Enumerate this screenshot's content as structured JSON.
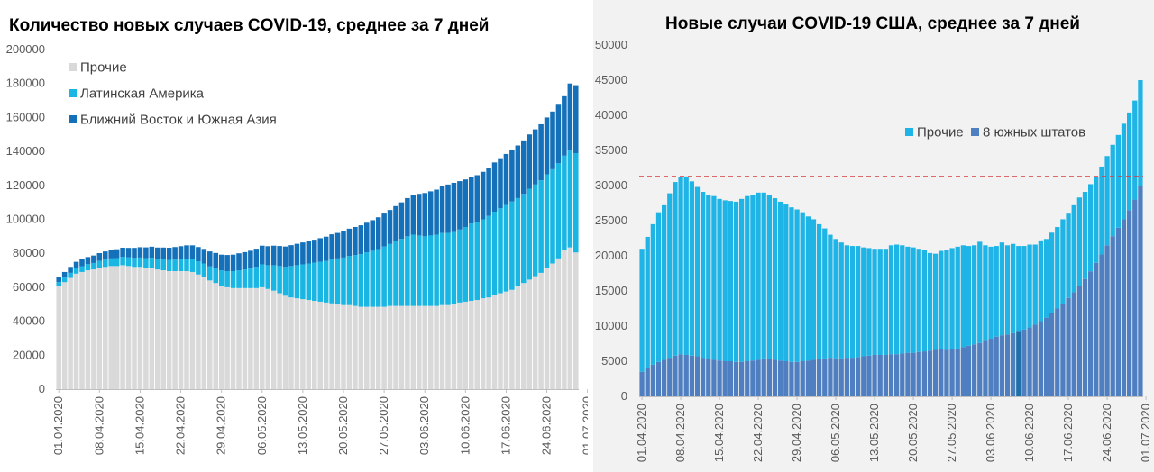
{
  "colors": {
    "other_gray": "#d9d9d9",
    "latin_america": "#19b5e3",
    "middle_east_south_asia": "#1470b8",
    "us_other": "#1fb4e6",
    "us_south": "#4f7fc0",
    "us_south_dark": "#1f6fa8",
    "reference_line": "#d63c3c"
  },
  "chart_data": [
    {
      "type": "bar",
      "stacked": true,
      "title": "Количество новых случаев COVID-19, среднее за 7 дней",
      "xlabel": "",
      "ylabel": "",
      "ylim": [
        0,
        200000
      ],
      "y_ticks": [
        "0",
        "20000",
        "40000",
        "60000",
        "80000",
        "100000",
        "120000",
        "140000",
        "160000",
        "180000",
        "200000"
      ],
      "x_ticks": [
        "01.04.2020",
        "08.04.2020",
        "15.04.2020",
        "22.04.2020",
        "29.04.2020",
        "06.05.2020",
        "13.05.2020",
        "20.05.2020",
        "27.05.2020",
        "03.06.2020",
        "10.06.2020",
        "17.06.2020",
        "24.06.2020",
        "01.07.2020"
      ],
      "x_start": "01.04.2020",
      "x_end": "02.07.2020",
      "grid": false,
      "legend_position": "top-left",
      "series": [
        {
          "name": "Прочие",
          "color": "#d9d9d9",
          "values": [
            60500,
            63000,
            65500,
            68000,
            69000,
            70000,
            70500,
            71500,
            72000,
            72500,
            72500,
            73000,
            72500,
            72000,
            72000,
            71500,
            71500,
            70500,
            70000,
            69500,
            69500,
            69500,
            69500,
            69000,
            67500,
            66000,
            64000,
            62500,
            61000,
            60000,
            59500,
            59500,
            59500,
            59500,
            59500,
            60000,
            59000,
            58000,
            56500,
            55000,
            54000,
            53500,
            53000,
            52500,
            52000,
            51500,
            51000,
            50500,
            50000,
            49500,
            49500,
            49000,
            48500,
            48500,
            48500,
            48500,
            48500,
            49000,
            49000,
            49000,
            49000,
            49000,
            49000,
            49000,
            49000,
            49000,
            49500,
            49500,
            50000,
            51000,
            51500,
            52000,
            52500,
            53500,
            54000,
            55500,
            56500,
            57500,
            58500,
            60500,
            62500,
            64500,
            66500,
            68500,
            71500,
            74000,
            77000,
            82000,
            83500,
            80500
          ]
        },
        {
          "name": "Латинская Америка",
          "color": "#19b5e3",
          "values": [
            2500,
            2700,
            3000,
            3200,
            3400,
            3600,
            3800,
            4000,
            4300,
            4500,
            4700,
            4900,
            5100,
            5300,
            5500,
            5700,
            5900,
            6100,
            6400,
            6600,
            6800,
            7000,
            7300,
            7500,
            7800,
            8000,
            8300,
            8700,
            9000,
            9500,
            10000,
            10500,
            11000,
            11500,
            12500,
            13500,
            14000,
            15000,
            16000,
            17000,
            18500,
            19500,
            20500,
            21500,
            22500,
            23500,
            24500,
            26000,
            27000,
            28000,
            29000,
            30000,
            31000,
            32000,
            33000,
            34000,
            35500,
            36500,
            38000,
            39500,
            41000,
            42000,
            41500,
            41000,
            41500,
            42000,
            42500,
            42500,
            42500,
            43000,
            44000,
            45500,
            46000,
            46500,
            48000,
            49000,
            50000,
            51000,
            52000,
            52000,
            52500,
            53500,
            54000,
            54500,
            55000,
            55500,
            56000,
            55500,
            57000,
            58500
          ]
        },
        {
          "name": "Ближний Восток и Южная Азия",
          "color": "#1470b8",
          "values": [
            3000,
            3300,
            3500,
            3800,
            4000,
            4200,
            4400,
            4600,
            4800,
            5000,
            5200,
            5400,
            5600,
            5900,
            6100,
            6300,
            6500,
            6800,
            7000,
            7200,
            7400,
            7700,
            7900,
            8200,
            8400,
            8600,
            8800,
            9000,
            9200,
            9500,
            9700,
            10000,
            10200,
            10500,
            10700,
            11000,
            11200,
            11500,
            11800,
            12000,
            12300,
            12600,
            12900,
            13200,
            13500,
            13900,
            14300,
            14700,
            15000,
            15500,
            16000,
            16500,
            17000,
            17500,
            18000,
            18700,
            19400,
            20000,
            20800,
            21500,
            22500,
            23500,
            24500,
            25500,
            26000,
            26500,
            27500,
            28500,
            29000,
            28500,
            28000,
            27500,
            27500,
            28000,
            28500,
            29000,
            29500,
            30000,
            30500,
            31000,
            31500,
            32000,
            32500,
            33000,
            33500,
            34000,
            34500,
            35000,
            39500,
            40000
          ]
        }
      ]
    },
    {
      "type": "bar",
      "stacked": true,
      "title": "Новые случаи COVID-19  США, среднее за 7 дней",
      "xlabel": "",
      "ylabel": "",
      "ylim": [
        0,
        50000
      ],
      "y_ticks": [
        "0",
        "5000",
        "10000",
        "15000",
        "20000",
        "25000",
        "30000",
        "35000",
        "40000",
        "45000",
        "50000"
      ],
      "x_ticks": [
        "01.04.2020",
        "08.04.2020",
        "15.04.2020",
        "22.04.2020",
        "29.04.2020",
        "06.05.2020",
        "13.05.2020",
        "20.05.2020",
        "27.05.2020",
        "03.06.2020",
        "10.06.2020",
        "17.06.2020",
        "24.06.2020",
        "01.07.2020"
      ],
      "x_start": "01.04.2020",
      "x_end": "02.07.2020",
      "grid": false,
      "legend_position": "top-right",
      "reference_line_y": 31300,
      "series": [
        {
          "name": "8 южных штатов",
          "color": "#4f7fc0",
          "values": [
            3500,
            4000,
            4500,
            4900,
            5200,
            5500,
            5800,
            6000,
            5900,
            5800,
            5700,
            5500,
            5300,
            5200,
            5100,
            5000,
            5000,
            4900,
            4900,
            5000,
            5100,
            5200,
            5400,
            5300,
            5200,
            5100,
            5000,
            4900,
            4900,
            5000,
            5100,
            5200,
            5300,
            5400,
            5500,
            5400,
            5400,
            5500,
            5500,
            5600,
            5700,
            5800,
            5900,
            5900,
            5900,
            6000,
            6000,
            6100,
            6200,
            6200,
            6300,
            6400,
            6500,
            6600,
            6700,
            6600,
            6700,
            6800,
            7000,
            7200,
            7400,
            7600,
            7900,
            8200,
            8500,
            8700,
            8800,
            9000,
            9200,
            9500,
            9800,
            10200,
            10700,
            11200,
            11800,
            12500,
            13200,
            14000,
            14800,
            15700,
            16700,
            17800,
            19000,
            20200,
            21500,
            22800,
            24000,
            25200,
            26500,
            28000,
            30000
          ]
        },
        {
          "name": "Прочие",
          "color": "#1fb4e6",
          "values": [
            17500,
            18700,
            20000,
            21300,
            22000,
            23400,
            24700,
            25200,
            25400,
            24800,
            24100,
            23600,
            23400,
            23300,
            23000,
            22900,
            22800,
            22800,
            23200,
            23500,
            23600,
            23800,
            23600,
            23300,
            23000,
            22600,
            22300,
            22000,
            21700,
            21200,
            20500,
            20000,
            19200,
            18500,
            17500,
            17000,
            16500,
            16000,
            15900,
            15800,
            15500,
            15300,
            15100,
            15100,
            15100,
            15500,
            15600,
            15400,
            15100,
            15000,
            14700,
            14400,
            13900,
            13700,
            14000,
            14200,
            14400,
            14500,
            14500,
            14200,
            14100,
            14400,
            13600,
            13100,
            12900,
            13200,
            12700,
            12700,
            12200,
            11900,
            11800,
            11400,
            11500,
            11200,
            11500,
            11600,
            12000,
            12000,
            12400,
            12600,
            12400,
            12400,
            12200,
            12500,
            12700,
            13000,
            13200,
            13600,
            13900,
            14100,
            15000
          ]
        }
      ]
    }
  ]
}
